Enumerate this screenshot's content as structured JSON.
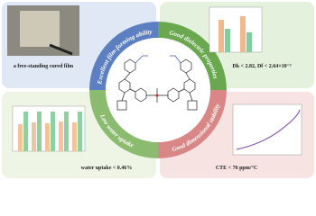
{
  "panels": [
    {
      "title": "Excellent film-forming ability",
      "caption": "a free-standing cured film"
    },
    {
      "title": "Good dielectric properties",
      "caption": "Dk < 2.82, Df < 2.64×10⁻³"
    },
    {
      "title": "Low water uptake",
      "caption": "water uptake < 0.46%"
    },
    {
      "title": "Good dimensional stability",
      "caption": "CTE < 76 ppm/°C"
    }
  ]
}
